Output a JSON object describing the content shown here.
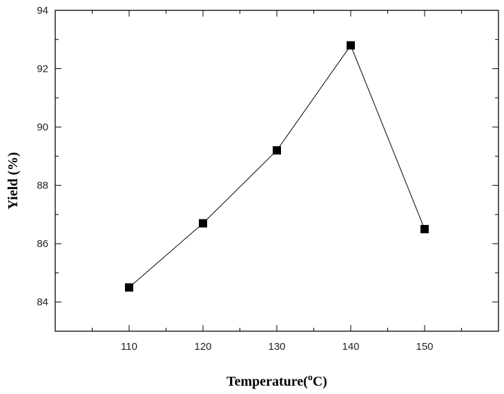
{
  "chart_data": {
    "type": "line",
    "title": "",
    "xlabel": "Temperature(",
    "xlabel_sup": "o",
    "xlabel_tail": "C)",
    "ylabel": "Yield  (%)",
    "x": [
      110,
      120,
      130,
      140,
      150
    ],
    "series": [
      {
        "values": [
          84.5,
          86.7,
          89.2,
          92.8,
          86.5
        ]
      }
    ],
    "xlim": [
      100,
      160
    ],
    "ylim": [
      83,
      94
    ],
    "x_ticks": [
      110,
      120,
      130,
      140,
      150
    ],
    "y_ticks": [
      84,
      86,
      88,
      90,
      92,
      94
    ],
    "grid": false,
    "legend": "none",
    "marker": "square",
    "color": "#000000"
  }
}
